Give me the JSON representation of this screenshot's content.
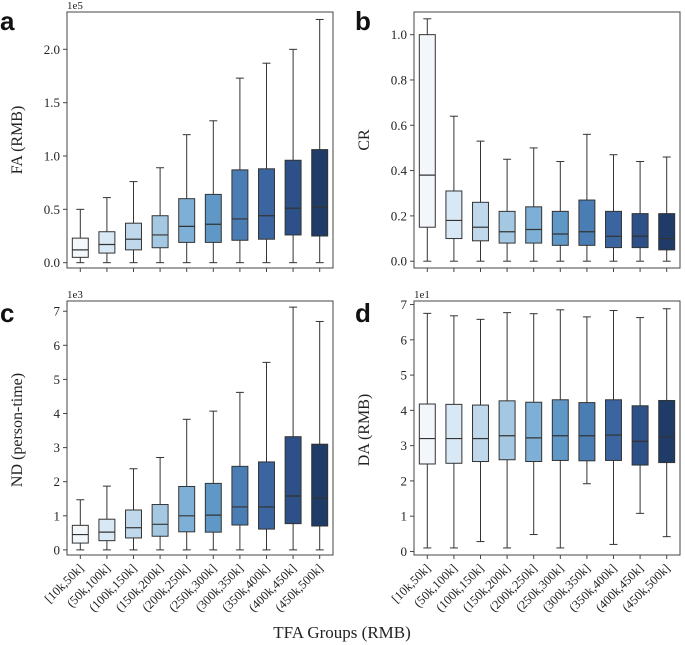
{
  "x_title": "TFA Groups (RMB)",
  "chart_data": [
    {
      "panel": "a",
      "type": "box",
      "ylabel": "FA (RMB)",
      "scale": "1e5",
      "ylim": [
        -0.05,
        2.35
      ],
      "yticks": [
        0.0,
        0.5,
        1.0,
        1.5,
        2.0
      ],
      "ytick_labels": [
        "0.0",
        "0.5",
        "1.0",
        "1.5",
        "2.0"
      ],
      "categories": [
        "[10k,50k]",
        "(50k,100k]",
        "(100k,150k]",
        "(150k,200k]",
        "(200k,250k]",
        "(250k,300k]",
        "(300k,350k]",
        "(350k,400k]",
        "(400k,450k]",
        "(450k,500k]"
      ],
      "boxes": [
        {
          "min": 0.0,
          "q1": 0.05,
          "median": 0.12,
          "q3": 0.23,
          "max": 0.5
        },
        {
          "min": 0.0,
          "q1": 0.09,
          "median": 0.17,
          "q3": 0.29,
          "max": 0.61
        },
        {
          "min": 0.0,
          "q1": 0.12,
          "median": 0.22,
          "q3": 0.37,
          "max": 0.76
        },
        {
          "min": 0.0,
          "q1": 0.14,
          "median": 0.26,
          "q3": 0.44,
          "max": 0.89
        },
        {
          "min": 0.0,
          "q1": 0.19,
          "median": 0.34,
          "q3": 0.6,
          "max": 1.2
        },
        {
          "min": 0.0,
          "q1": 0.19,
          "median": 0.36,
          "q3": 0.64,
          "max": 1.33
        },
        {
          "min": 0.0,
          "q1": 0.21,
          "median": 0.41,
          "q3": 0.87,
          "max": 1.73
        },
        {
          "min": 0.0,
          "q1": 0.22,
          "median": 0.44,
          "q3": 0.88,
          "max": 1.87
        },
        {
          "min": 0.0,
          "q1": 0.26,
          "median": 0.51,
          "q3": 0.96,
          "max": 2.0
        },
        {
          "min": 0.0,
          "q1": 0.25,
          "median": 0.52,
          "q3": 1.06,
          "max": 2.28
        }
      ]
    },
    {
      "panel": "b",
      "type": "box",
      "ylabel": "CR",
      "scale": "",
      "ylim": [
        -0.03,
        1.1
      ],
      "yticks": [
        0.0,
        0.2,
        0.4,
        0.6,
        0.8,
        1.0
      ],
      "ytick_labels": [
        "0.0",
        "0.2",
        "0.4",
        "0.6",
        "0.8",
        "1.0"
      ],
      "categories": [
        "[10k,50k]",
        "(50k,100k]",
        "(100k,150k]",
        "(150k,200k]",
        "(200k,250k]",
        "(250k,300k]",
        "(300k,350k]",
        "(350k,400k]",
        "(400k,450k]",
        "(450k,500k]"
      ],
      "boxes": [
        {
          "min": 0.0,
          "q1": 0.15,
          "median": 0.38,
          "q3": 1.0,
          "max": 1.07
        },
        {
          "min": 0.0,
          "q1": 0.1,
          "median": 0.18,
          "q3": 0.31,
          "max": 0.64
        },
        {
          "min": 0.0,
          "q1": 0.09,
          "median": 0.15,
          "q3": 0.26,
          "max": 0.53
        },
        {
          "min": 0.0,
          "q1": 0.08,
          "median": 0.13,
          "q3": 0.22,
          "max": 0.45
        },
        {
          "min": 0.0,
          "q1": 0.08,
          "median": 0.14,
          "q3": 0.24,
          "max": 0.5
        },
        {
          "min": 0.0,
          "q1": 0.07,
          "median": 0.12,
          "q3": 0.22,
          "max": 0.44
        },
        {
          "min": 0.0,
          "q1": 0.07,
          "median": 0.13,
          "q3": 0.27,
          "max": 0.56
        },
        {
          "min": 0.0,
          "q1": 0.06,
          "median": 0.11,
          "q3": 0.22,
          "max": 0.47
        },
        {
          "min": 0.0,
          "q1": 0.06,
          "median": 0.11,
          "q3": 0.21,
          "max": 0.44
        },
        {
          "min": 0.0,
          "q1": 0.05,
          "median": 0.1,
          "q3": 0.21,
          "max": 0.46
        }
      ]
    },
    {
      "panel": "c",
      "type": "box",
      "ylabel": "ND (person-time)",
      "scale": "1e3",
      "ylim": [
        -0.15,
        7.3
      ],
      "yticks": [
        0,
        1,
        2,
        3,
        4,
        5,
        6,
        7
      ],
      "ytick_labels": [
        "0",
        "1",
        "2",
        "3",
        "4",
        "5",
        "6",
        "7"
      ],
      "categories": [
        "[10k,50k]",
        "(50k,100k]",
        "(100k,150k]",
        "(150k,200k]",
        "(200k,250k]",
        "(250k,300k]",
        "(300k,350k]",
        "(350k,400k]",
        "(400k,450k]",
        "(450k,500k]"
      ],
      "boxes": [
        {
          "min": 0.0,
          "q1": 0.2,
          "median": 0.45,
          "q3": 0.72,
          "max": 1.47
        },
        {
          "min": 0.0,
          "q1": 0.27,
          "median": 0.52,
          "q3": 0.9,
          "max": 1.87
        },
        {
          "min": 0.0,
          "q1": 0.35,
          "median": 0.65,
          "q3": 1.17,
          "max": 2.38
        },
        {
          "min": 0.0,
          "q1": 0.4,
          "median": 0.75,
          "q3": 1.33,
          "max": 2.71
        },
        {
          "min": 0.0,
          "q1": 0.53,
          "median": 1.0,
          "q3": 1.86,
          "max": 3.83
        },
        {
          "min": 0.0,
          "q1": 0.52,
          "median": 1.02,
          "q3": 1.95,
          "max": 4.07
        },
        {
          "min": 0.0,
          "q1": 0.73,
          "median": 1.26,
          "q3": 2.45,
          "max": 4.62
        },
        {
          "min": 0.0,
          "q1": 0.61,
          "median": 1.26,
          "q3": 2.58,
          "max": 5.5
        },
        {
          "min": 0.0,
          "q1": 0.77,
          "median": 1.58,
          "q3": 3.32,
          "max": 7.12
        },
        {
          "min": 0.0,
          "q1": 0.7,
          "median": 1.52,
          "q3": 3.1,
          "max": 6.7
        }
      ]
    },
    {
      "panel": "d",
      "type": "box",
      "ylabel": "DA (RMB)",
      "scale": "1e1",
      "ylim": [
        -0.1,
        7.1
      ],
      "yticks": [
        0,
        1,
        2,
        3,
        4,
        5,
        6,
        7
      ],
      "ytick_labels": [
        "0",
        "1",
        "2",
        "3",
        "4",
        "5",
        "6",
        "7"
      ],
      "categories": [
        "[10k,50k]",
        "(50k,100k]",
        "(100k,150k]",
        "(150k,200k]",
        "(200k,250k]",
        "(250k,300k]",
        "(300k,350k]",
        "(350k,400k]",
        "(400k,450k]",
        "(450k,500k]"
      ],
      "boxes": [
        {
          "min": 0.1,
          "q1": 2.48,
          "median": 3.2,
          "q3": 4.18,
          "max": 6.75
        },
        {
          "min": 0.1,
          "q1": 2.5,
          "median": 3.2,
          "q3": 4.17,
          "max": 6.68
        },
        {
          "min": 0.28,
          "q1": 2.55,
          "median": 3.2,
          "q3": 4.15,
          "max": 6.58
        },
        {
          "min": 0.1,
          "q1": 2.6,
          "median": 3.28,
          "q3": 4.27,
          "max": 6.77
        },
        {
          "min": 0.48,
          "q1": 2.55,
          "median": 3.22,
          "q3": 4.23,
          "max": 6.74
        },
        {
          "min": 0.1,
          "q1": 2.58,
          "median": 3.28,
          "q3": 4.3,
          "max": 6.85
        },
        {
          "min": 1.92,
          "q1": 2.57,
          "median": 3.28,
          "q3": 4.22,
          "max": 6.65
        },
        {
          "min": 0.2,
          "q1": 2.58,
          "median": 3.3,
          "q3": 4.3,
          "max": 6.83
        },
        {
          "min": 1.08,
          "q1": 2.45,
          "median": 3.12,
          "q3": 4.13,
          "max": 6.63
        },
        {
          "min": 0.42,
          "q1": 2.52,
          "median": 3.25,
          "q3": 4.28,
          "max": 6.88
        }
      ]
    }
  ],
  "colors": {
    "boxes": [
      "#f3f7fc",
      "#d9e8f5",
      "#c0d8ec",
      "#a4c8e1",
      "#7eb0d7",
      "#5f97c7",
      "#4b7db5",
      "#3a65a0",
      "#2d5088",
      "#1f3b68"
    ],
    "edge": "#333333"
  }
}
